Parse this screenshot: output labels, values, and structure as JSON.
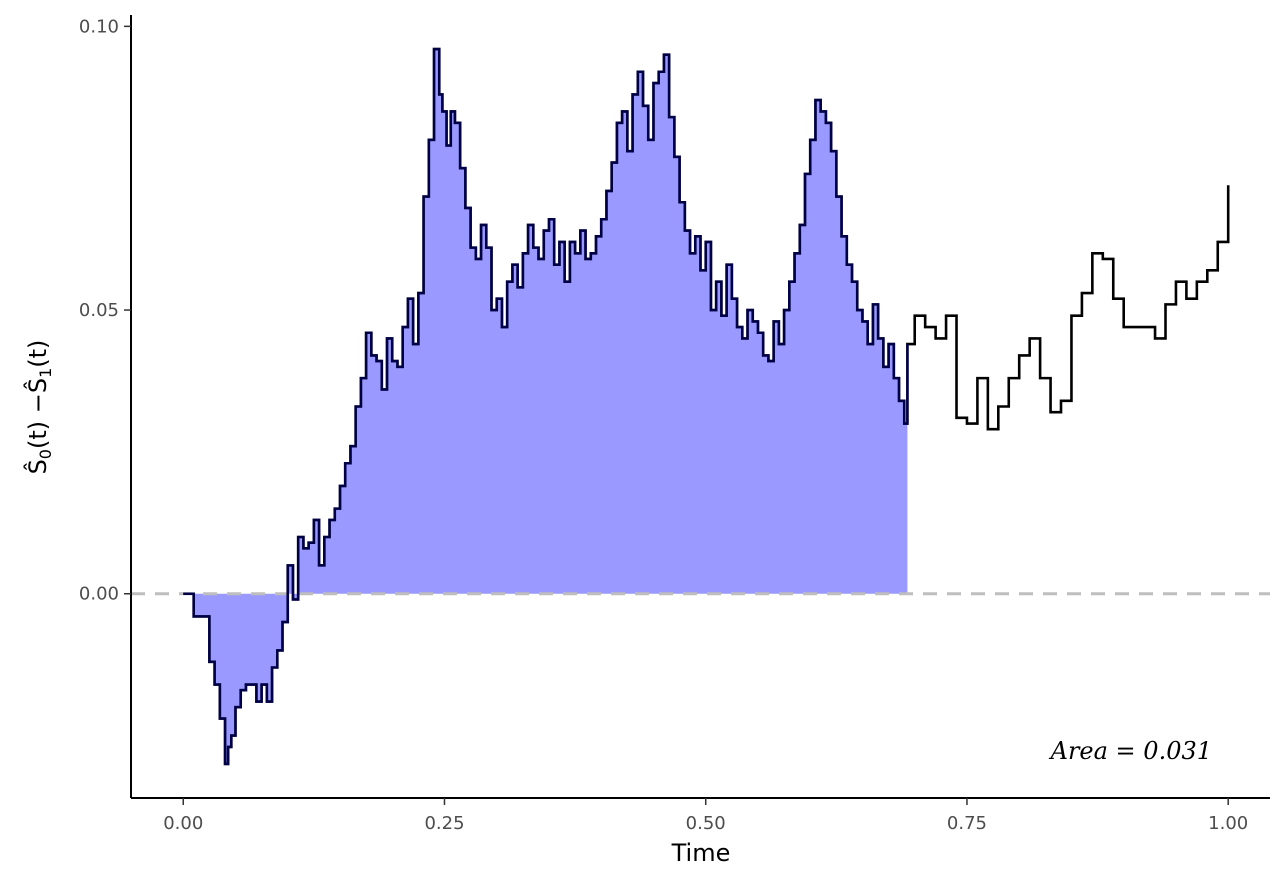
{
  "chart_data": {
    "type": "line",
    "title": "",
    "xlabel": "Time",
    "ylabel_main": "Ŝ",
    "ylabel_sub0": "0",
    "ylabel_mid": "(t) −Ŝ",
    "ylabel_sub1": "1",
    "ylabel_end": "(t)",
    "xlim": [
      -0.05,
      1.04
    ],
    "ylim": [
      -0.036,
      0.102
    ],
    "x_ticks": [
      0.0,
      0.25,
      0.5,
      0.75,
      1.0
    ],
    "x_tick_labels": [
      "0.00",
      "0.25",
      "0.50",
      "0.75",
      "1.00"
    ],
    "y_ticks": [
      0.0,
      0.05,
      0.1
    ],
    "y_tick_labels": [
      "0.00",
      "0.05",
      "0.10"
    ],
    "grid": false,
    "reference_line": {
      "y": 0,
      "style": "dashed",
      "color": "#bebebe"
    },
    "shade_until_x": 0.693,
    "annotation": "Area = 0.031",
    "colors": {
      "line": "#000000",
      "fill": "#9999ff",
      "shaded_line": "#000080",
      "axis": "#000000"
    },
    "series": [
      {
        "x": [
          0.0,
          0.01,
          0.02,
          0.025,
          0.03,
          0.035,
          0.04,
          0.043,
          0.046,
          0.05,
          0.055,
          0.06,
          0.065,
          0.07,
          0.075,
          0.08,
          0.085,
          0.09,
          0.095,
          0.1,
          0.105,
          0.11,
          0.115,
          0.12,
          0.125,
          0.13,
          0.135,
          0.14,
          0.145,
          0.15,
          0.155,
          0.16,
          0.165,
          0.17,
          0.175,
          0.18,
          0.185,
          0.19,
          0.195,
          0.2,
          0.205,
          0.21,
          0.215,
          0.22,
          0.225,
          0.23,
          0.235,
          0.24,
          0.245,
          0.248,
          0.252,
          0.256,
          0.26,
          0.265,
          0.27,
          0.275,
          0.28,
          0.285,
          0.29,
          0.295,
          0.3,
          0.305,
          0.31,
          0.315,
          0.32,
          0.325,
          0.33,
          0.335,
          0.34,
          0.345,
          0.35,
          0.355,
          0.36,
          0.365,
          0.37,
          0.375,
          0.38,
          0.385,
          0.39,
          0.395,
          0.4,
          0.405,
          0.41,
          0.415,
          0.42,
          0.425,
          0.43,
          0.435,
          0.44,
          0.445,
          0.45,
          0.455,
          0.46,
          0.465,
          0.47,
          0.475,
          0.48,
          0.485,
          0.49,
          0.495,
          0.5,
          0.505,
          0.51,
          0.515,
          0.52,
          0.525,
          0.53,
          0.535,
          0.54,
          0.545,
          0.55,
          0.555,
          0.56,
          0.565,
          0.57,
          0.575,
          0.58,
          0.585,
          0.59,
          0.595,
          0.6,
          0.605,
          0.61,
          0.615,
          0.62,
          0.625,
          0.63,
          0.635,
          0.64,
          0.645,
          0.65,
          0.655,
          0.66,
          0.665,
          0.67,
          0.675,
          0.68,
          0.685,
          0.69,
          0.693,
          0.7,
          0.71,
          0.72,
          0.73,
          0.74,
          0.75,
          0.76,
          0.77,
          0.78,
          0.79,
          0.8,
          0.81,
          0.82,
          0.83,
          0.84,
          0.85,
          0.86,
          0.87,
          0.88,
          0.89,
          0.9,
          0.91,
          0.92,
          0.93,
          0.94,
          0.95,
          0.96,
          0.97,
          0.98,
          0.99,
          1.0
        ],
        "y": [
          0.0,
          -0.004,
          -0.004,
          -0.012,
          -0.016,
          -0.022,
          -0.03,
          -0.027,
          -0.025,
          -0.02,
          -0.017,
          -0.016,
          -0.016,
          -0.019,
          -0.016,
          -0.019,
          -0.013,
          -0.01,
          -0.005,
          0.005,
          -0.001,
          0.01,
          0.008,
          0.009,
          0.013,
          0.005,
          0.01,
          0.013,
          0.015,
          0.019,
          0.023,
          0.026,
          0.033,
          0.038,
          0.046,
          0.042,
          0.041,
          0.036,
          0.045,
          0.041,
          0.04,
          0.047,
          0.052,
          0.044,
          0.053,
          0.07,
          0.08,
          0.096,
          0.088,
          0.085,
          0.079,
          0.085,
          0.083,
          0.075,
          0.068,
          0.061,
          0.059,
          0.065,
          0.061,
          0.05,
          0.052,
          0.047,
          0.055,
          0.058,
          0.054,
          0.06,
          0.065,
          0.061,
          0.059,
          0.064,
          0.066,
          0.058,
          0.062,
          0.055,
          0.062,
          0.06,
          0.064,
          0.059,
          0.06,
          0.063,
          0.066,
          0.071,
          0.076,
          0.083,
          0.085,
          0.078,
          0.088,
          0.092,
          0.086,
          0.08,
          0.09,
          0.092,
          0.095,
          0.084,
          0.077,
          0.069,
          0.064,
          0.06,
          0.063,
          0.057,
          0.062,
          0.05,
          0.055,
          0.049,
          0.058,
          0.052,
          0.047,
          0.045,
          0.05,
          0.048,
          0.046,
          0.042,
          0.041,
          0.048,
          0.044,
          0.05,
          0.055,
          0.06,
          0.065,
          0.074,
          0.08,
          0.087,
          0.085,
          0.083,
          0.078,
          0.07,
          0.063,
          0.058,
          0.055,
          0.05,
          0.048,
          0.044,
          0.051,
          0.045,
          0.04,
          0.044,
          0.038,
          0.034,
          0.03,
          0.044,
          0.049,
          0.047,
          0.045,
          0.049,
          0.031,
          0.03,
          0.038,
          0.029,
          0.033,
          0.038,
          0.042,
          0.045,
          0.038,
          0.032,
          0.034,
          0.049,
          0.053,
          0.06,
          0.059,
          0.052,
          0.047,
          0.047,
          0.047,
          0.045,
          0.051,
          0.055,
          0.052,
          0.055,
          0.057,
          0.062,
          0.072
        ]
      }
    ]
  }
}
